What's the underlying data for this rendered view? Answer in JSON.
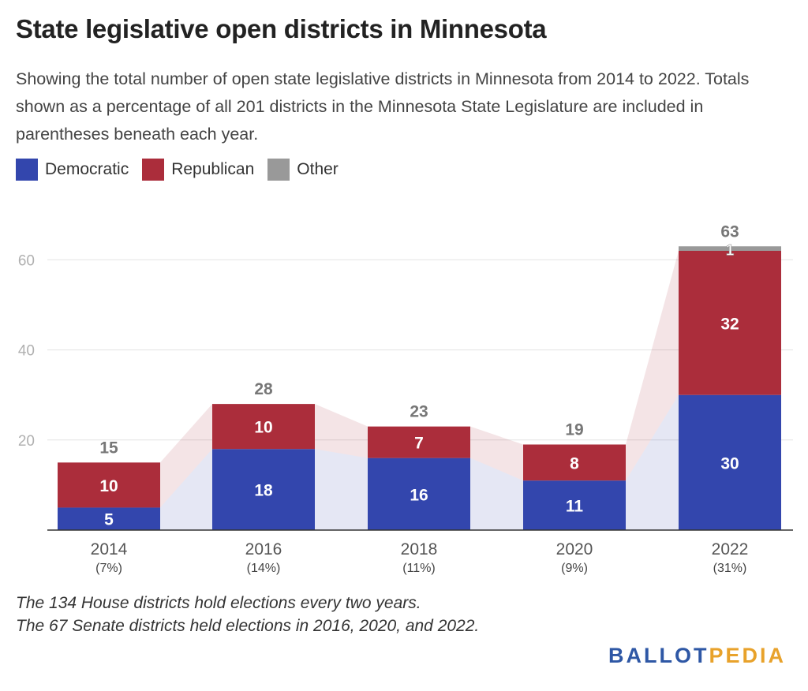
{
  "title": "State legislative open districts in Minnesota",
  "subtitle": "Showing the total number of open state legislative districts in Minnesota from 2014 to 2022. Totals shown as a percentage of all 201 districts in the Minnesota State Legislature are included in parentheses beneath each year.",
  "legend": [
    {
      "label": "Democratic",
      "color": "#3346ad"
    },
    {
      "label": "Republican",
      "color": "#ab2d3b"
    },
    {
      "label": "Other",
      "color": "#999999"
    }
  ],
  "notes": {
    "line1": "The 134 House districts hold elections every two years.",
    "line2": "The 67 Senate districts held elections in 2016, 2020, and 2022."
  },
  "logo": {
    "part1": "BALLOT",
    "part2": "PEDIA"
  },
  "chart_data": {
    "type": "bar",
    "stacked": true,
    "categories": [
      "2014",
      "2016",
      "2018",
      "2020",
      "2022"
    ],
    "category_sublabels": [
      "(7%)",
      "(14%)",
      "(11%)",
      "(9%)",
      "(31%)"
    ],
    "series": [
      {
        "name": "Democratic",
        "color": "#3346ad",
        "values": [
          5,
          18,
          16,
          11,
          30
        ]
      },
      {
        "name": "Republican",
        "color": "#ab2d3b",
        "values": [
          10,
          10,
          7,
          8,
          32
        ]
      },
      {
        "name": "Other",
        "color": "#999999",
        "values": [
          0,
          0,
          0,
          0,
          1
        ]
      }
    ],
    "totals": [
      15,
      28,
      23,
      19,
      63
    ],
    "yticks": [
      20,
      40,
      60
    ],
    "ylim": [
      0,
      63
    ],
    "grid": true,
    "legend_position": "top-left"
  }
}
